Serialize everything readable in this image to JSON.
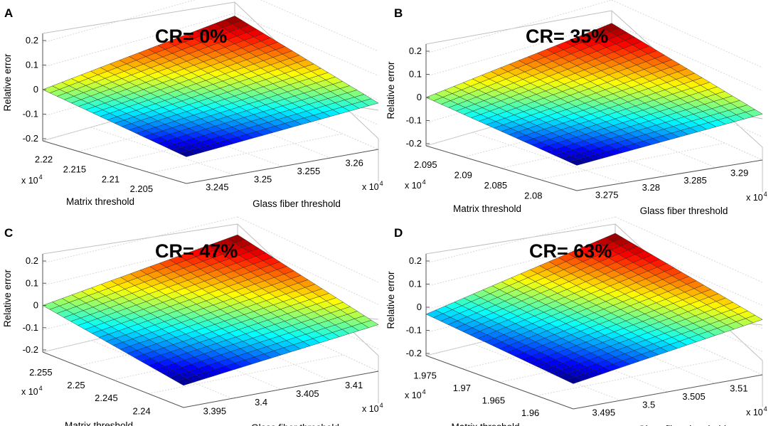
{
  "figure": {
    "sci_base": "x 10",
    "sci_exponent": "4"
  },
  "chart_data": [
    {
      "type": "surface",
      "panel": "A",
      "title": "CR= 0%",
      "zlabel": "Relative error",
      "xlabel": "Glass fiber threshold",
      "ylabel": "Matrix threshold",
      "zlim": [
        -0.2,
        0.2
      ],
      "zticks": [
        "0.2",
        "0.1",
        "0",
        "-0.1",
        "-0.2"
      ],
      "x_range": [
        3.242,
        3.262
      ],
      "x_ticks": [
        "3.245",
        "3.25",
        "3.255",
        "3.26"
      ],
      "y_range": [
        2.201,
        2.222
      ],
      "y_ticks": [
        "2.22",
        "2.215",
        "2.21",
        "2.205"
      ],
      "scale": "x 10^4",
      "z_corners": {
        "near": -0.1,
        "left": 0.0,
        "right": -0.02,
        "back": 0.08
      },
      "grid": true
    },
    {
      "type": "surface",
      "panel": "B",
      "title": "CR= 35%",
      "zlabel": "Relative error",
      "xlabel": "Glass fiber threshold",
      "ylabel": "Matrix threshold",
      "zlim": [
        -0.2,
        0.2
      ],
      "zticks": [
        "0.2",
        "0.1",
        "0",
        "-0.1",
        "-0.2"
      ],
      "x_range": [
        3.272,
        3.292
      ],
      "x_ticks": [
        "3.275",
        "3.28",
        "3.285",
        "3.29"
      ],
      "y_range": [
        2.078,
        2.097
      ],
      "y_ticks": [
        "2.095",
        "2.09",
        "2.085",
        "2.08"
      ],
      "scale": "x 10^4",
      "z_corners": {
        "near": -0.1,
        "left": 0.0,
        "right": -0.01,
        "back": 0.09
      },
      "grid": true
    },
    {
      "type": "surface",
      "panel": "C",
      "title": "CR= 47%",
      "zlabel": "Relative error",
      "xlabel": "Glass fiber threshold",
      "ylabel": "Matrix threshold",
      "zlim": [
        -0.2,
        0.2
      ],
      "zticks": [
        "0.2",
        "0.1",
        "0",
        "-0.1",
        "-0.2"
      ],
      "x_range": [
        3.392,
        3.412
      ],
      "x_ticks": [
        "3.395",
        "3.4",
        "3.405",
        "3.41"
      ],
      "y_range": [
        2.237,
        2.257
      ],
      "y_ticks": [
        "2.255",
        "2.25",
        "2.245",
        "2.24"
      ],
      "scale": "x 10^4",
      "z_corners": {
        "near": -0.11,
        "left": 0.0,
        "right": 0.0,
        "back": 0.11
      },
      "grid": true
    },
    {
      "type": "surface",
      "panel": "D",
      "title": "CR= 63%",
      "zlabel": "Relative error",
      "xlabel": "Glass fiber threshold",
      "ylabel": "Matrix threshold",
      "zlim": [
        -0.2,
        0.2
      ],
      "zticks": [
        "0.2",
        "0.1",
        "0",
        "-0.1",
        "-0.2"
      ],
      "x_range": [
        3.492,
        3.512
      ],
      "x_ticks": [
        "3.495",
        "3.5",
        "3.505",
        "3.51"
      ],
      "y_range": [
        1.958,
        1.977
      ],
      "y_ticks": [
        "1.975",
        "1.97",
        "1.965",
        "1.96"
      ],
      "scale": "x 10^4",
      "z_corners": {
        "near": -0.1,
        "left": -0.03,
        "right": 0.03,
        "back": 0.12
      },
      "grid": true
    }
  ]
}
